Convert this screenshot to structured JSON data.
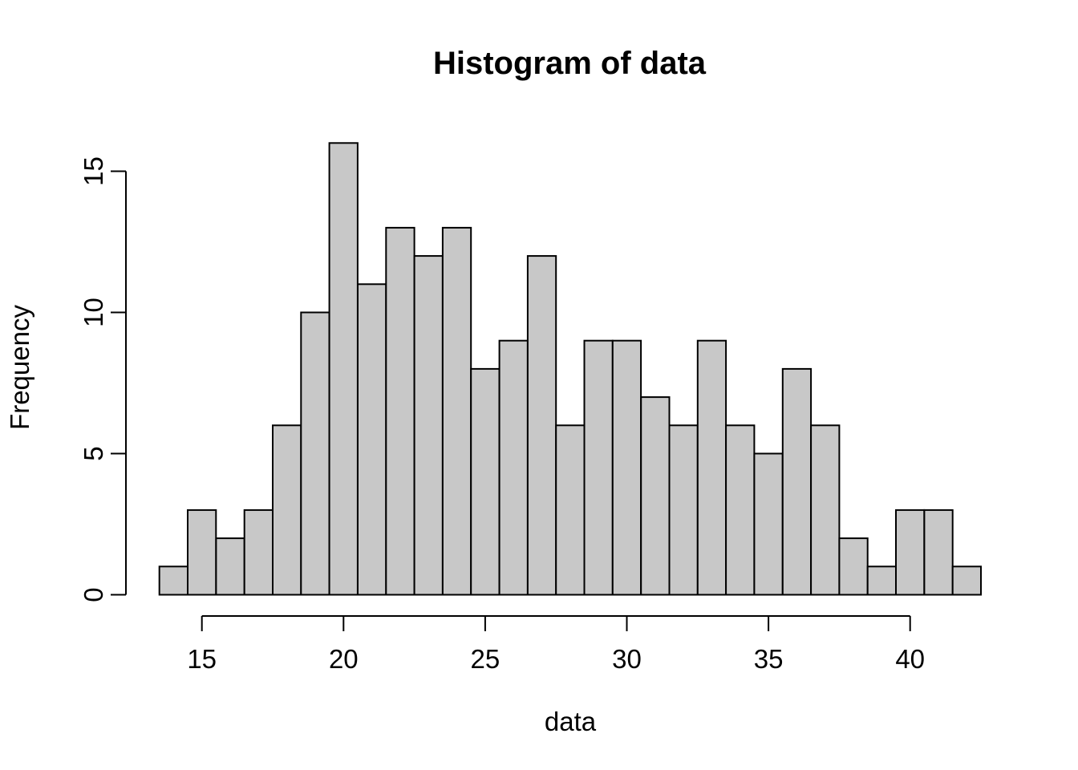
{
  "chart_data": {
    "type": "bar",
    "subtype": "histogram",
    "title": "Histogram of data",
    "xlabel": "data",
    "ylabel": "Frequency",
    "bin_edges": [
      13.5,
      14.5,
      15.5,
      16.5,
      17.5,
      18.5,
      19.5,
      20.5,
      21.5,
      22.5,
      23.5,
      24.5,
      25.5,
      26.5,
      27.5,
      28.5,
      29.5,
      30.5,
      31.5,
      32.5,
      33.5,
      34.5,
      35.5,
      36.5,
      37.5,
      38.5,
      39.5,
      40.5,
      41.5,
      42.5
    ],
    "bin_centers": [
      14,
      15,
      16,
      17,
      18,
      19,
      20,
      21,
      22,
      23,
      24,
      25,
      26,
      27,
      28,
      29,
      30,
      31,
      32,
      33,
      34,
      35,
      36,
      37,
      38,
      39,
      40,
      41,
      42
    ],
    "counts": [
      1,
      3,
      2,
      3,
      6,
      10,
      16,
      11,
      13,
      12,
      13,
      8,
      9,
      12,
      6,
      9,
      9,
      7,
      6,
      9,
      6,
      5,
      8,
      6,
      2,
      1,
      3,
      3,
      1
    ],
    "total_n": 200,
    "x_ticks": [
      15,
      20,
      25,
      30,
      35,
      40
    ],
    "y_ticks": [
      0,
      5,
      10,
      15
    ],
    "xlim": [
      13.5,
      42.5
    ],
    "ylim": [
      0,
      16
    ],
    "grid": "off",
    "legend": "none",
    "colors": {
      "bar_fill": "#C8C8C8",
      "bar_border": "#000000",
      "axis": "#000000",
      "text": "#000000",
      "background": "#FFFFFF"
    }
  }
}
